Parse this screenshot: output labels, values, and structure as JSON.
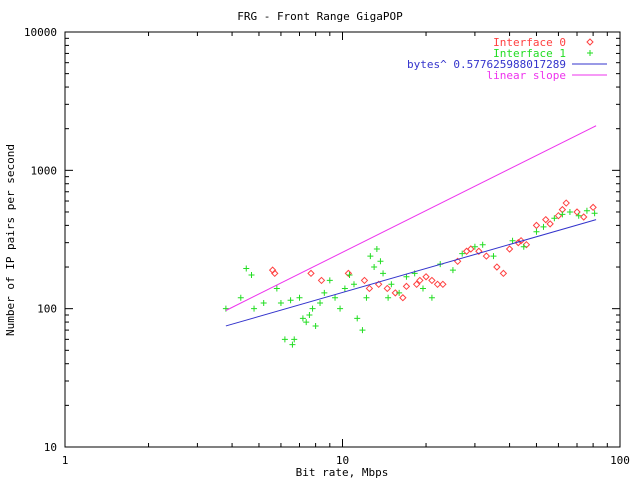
{
  "chart_data": {
    "type": "scatter",
    "title": "FRG - Front Range GigaPOP",
    "xlabel": "Bit rate, Mbps",
    "ylabel": "Number of IP pairs per second",
    "xscale": "log",
    "yscale": "log",
    "xlim": [
      1,
      100
    ],
    "ylim": [
      10,
      10000
    ],
    "x_ticks": [
      "1",
      "10",
      "100"
    ],
    "y_ticks": [
      "10",
      "100",
      "1000",
      "10000"
    ],
    "grid": false,
    "legend_position": "top-right",
    "colors": {
      "interface0": "#ff4040",
      "interface1": "#22dd22",
      "fit": "#3333cc",
      "linear": "#ee33ee",
      "axis": "#000000"
    },
    "series": [
      {
        "name": "Interface 0",
        "marker": "diamond",
        "points": [
          [
            5.6,
            190
          ],
          [
            5.7,
            180
          ],
          [
            7.7,
            180
          ],
          [
            8.4,
            160
          ],
          [
            10.5,
            180
          ],
          [
            12,
            160
          ],
          [
            12.5,
            140
          ],
          [
            13.5,
            150
          ],
          [
            14.5,
            140
          ],
          [
            15.5,
            130
          ],
          [
            16.5,
            120
          ],
          [
            17,
            145
          ],
          [
            18.5,
            150
          ],
          [
            19,
            160
          ],
          [
            20,
            170
          ],
          [
            21,
            160
          ],
          [
            22,
            150
          ],
          [
            23,
            150
          ],
          [
            26,
            220
          ],
          [
            28,
            260
          ],
          [
            29,
            270
          ],
          [
            31,
            260
          ],
          [
            33,
            240
          ],
          [
            36,
            200
          ],
          [
            38,
            180
          ],
          [
            40,
            270
          ],
          [
            43,
            300
          ],
          [
            44,
            310
          ],
          [
            46,
            290
          ],
          [
            50,
            400
          ],
          [
            54,
            440
          ],
          [
            56,
            410
          ],
          [
            60,
            470
          ],
          [
            62,
            520
          ],
          [
            64,
            580
          ],
          [
            70,
            500
          ],
          [
            74,
            460
          ],
          [
            80,
            540
          ]
        ]
      },
      {
        "name": "Interface 1",
        "marker": "plus",
        "points": [
          [
            3.8,
            100
          ],
          [
            4.3,
            120
          ],
          [
            4.5,
            195
          ],
          [
            4.7,
            175
          ],
          [
            4.8,
            100
          ],
          [
            5.2,
            110
          ],
          [
            5.8,
            140
          ],
          [
            6.0,
            110
          ],
          [
            6.2,
            60
          ],
          [
            6.5,
            115
          ],
          [
            6.6,
            55
          ],
          [
            6.7,
            60
          ],
          [
            7.0,
            120
          ],
          [
            7.2,
            85
          ],
          [
            7.4,
            80
          ],
          [
            7.6,
            90
          ],
          [
            7.8,
            100
          ],
          [
            8.0,
            75
          ],
          [
            8.3,
            110
          ],
          [
            8.6,
            130
          ],
          [
            9.0,
            160
          ],
          [
            9.4,
            120
          ],
          [
            9.8,
            100
          ],
          [
            10.2,
            140
          ],
          [
            10.6,
            175
          ],
          [
            11.0,
            150
          ],
          [
            11.3,
            85
          ],
          [
            11.8,
            70
          ],
          [
            12.2,
            120
          ],
          [
            12.6,
            240
          ],
          [
            13.0,
            200
          ],
          [
            13.3,
            270
          ],
          [
            13.7,
            220
          ],
          [
            14.0,
            180
          ],
          [
            14.6,
            120
          ],
          [
            15.0,
            150
          ],
          [
            16.0,
            130
          ],
          [
            17.0,
            170
          ],
          [
            18.2,
            180
          ],
          [
            19.5,
            140
          ],
          [
            21.0,
            120
          ],
          [
            22.5,
            210
          ],
          [
            25.0,
            190
          ],
          [
            27.0,
            250
          ],
          [
            30.0,
            280
          ],
          [
            32.0,
            290
          ],
          [
            35.0,
            240
          ],
          [
            41.0,
            310
          ],
          [
            45.0,
            280
          ],
          [
            50.0,
            360
          ],
          [
            53.0,
            390
          ],
          [
            58.0,
            450
          ],
          [
            62.0,
            480
          ],
          [
            66.0,
            500
          ],
          [
            71.0,
            470
          ],
          [
            76.0,
            510
          ],
          [
            81.0,
            490
          ]
        ]
      },
      {
        "name": "bytes^ 0.577625988017289",
        "type": "line",
        "points": [
          [
            3.8,
            75
          ],
          [
            82,
            440
          ]
        ]
      },
      {
        "name": "linear slope",
        "type": "line",
        "points": [
          [
            3.8,
            97
          ],
          [
            82,
            2100
          ]
        ]
      }
    ]
  }
}
